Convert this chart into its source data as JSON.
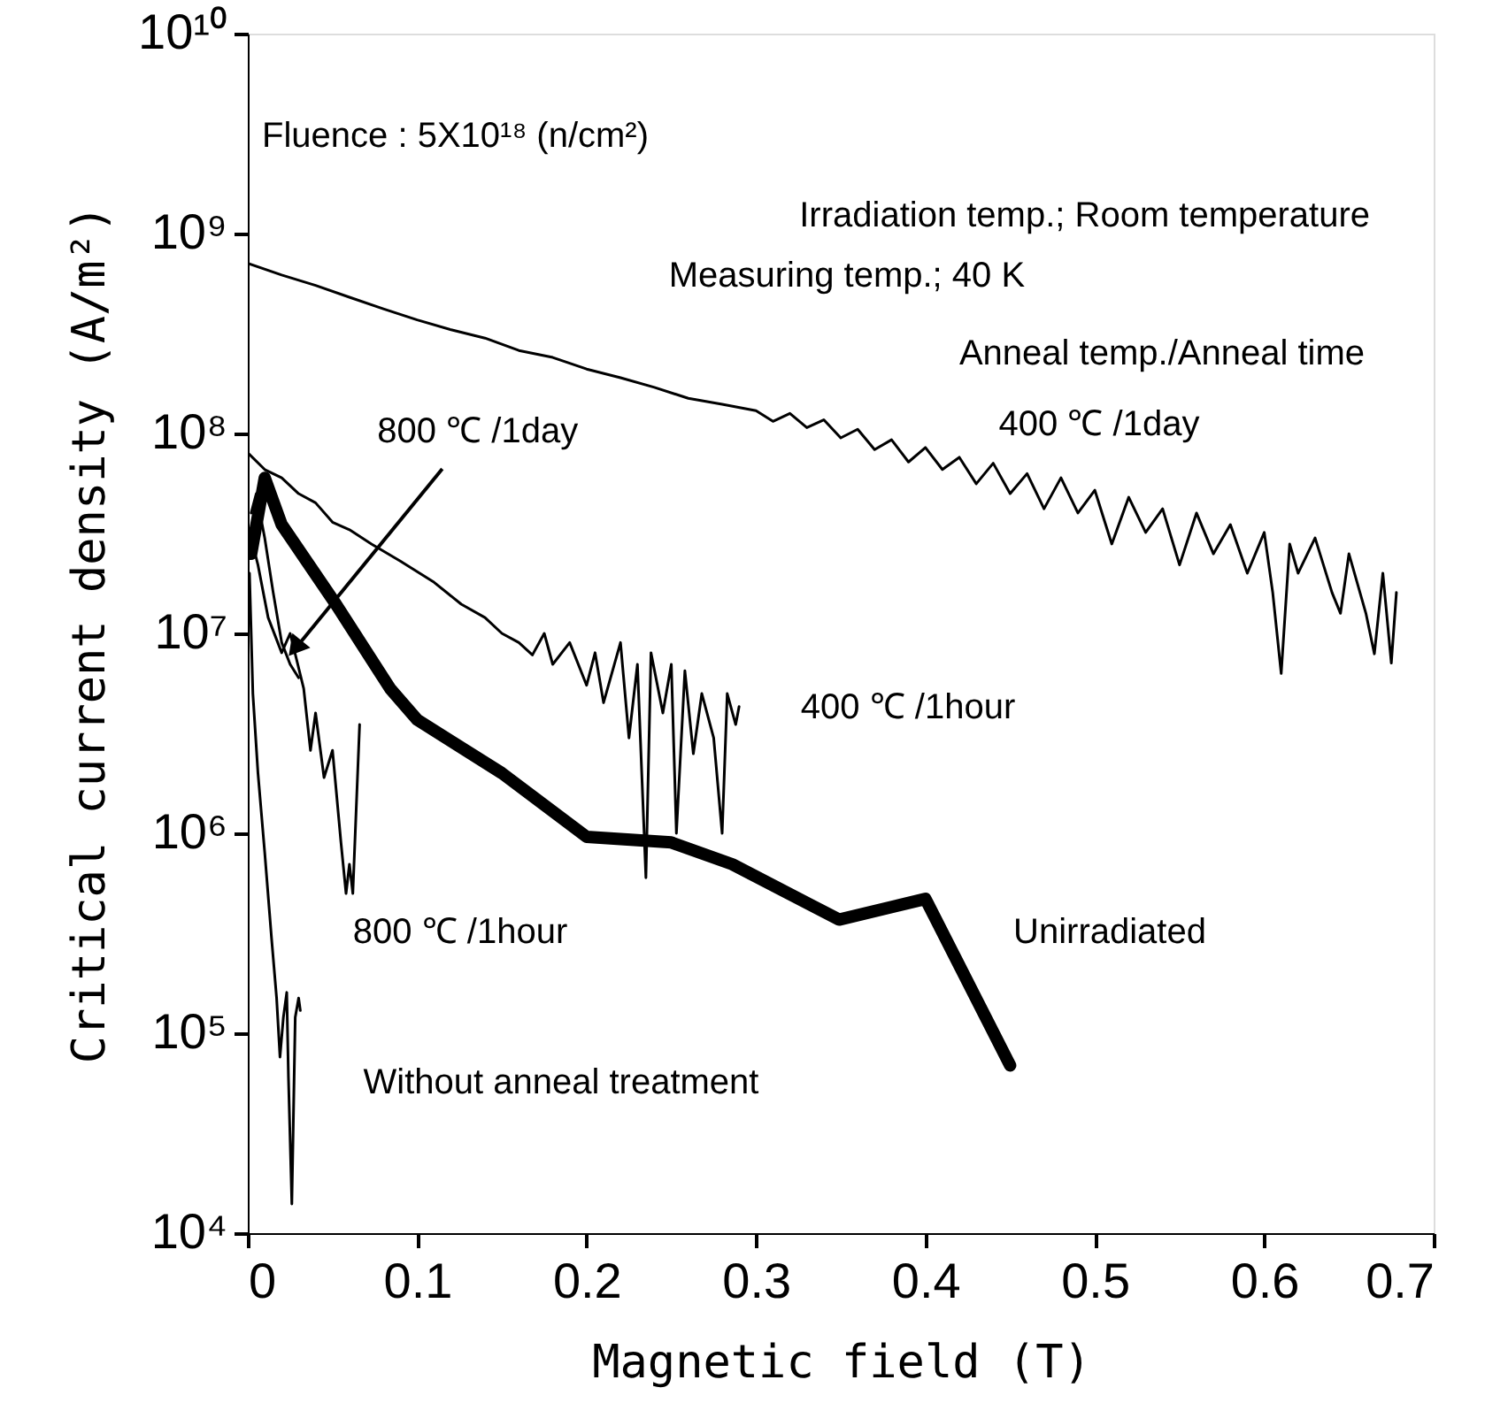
{
  "chart_data": {
    "type": "line",
    "xlabel": "Magnetic field (T)",
    "ylabel": "Critical current density (A/m²)",
    "xlim": [
      0,
      0.7
    ],
    "xticks": [
      0,
      0.1,
      0.2,
      0.3,
      0.4,
      0.5,
      0.6,
      0.7
    ],
    "ylim": [
      10000,
      10000000000
    ],
    "log": "y",
    "yticks": [
      {
        "value": 10000,
        "label": "10⁴"
      },
      {
        "value": 100000,
        "label": "10⁵"
      },
      {
        "value": 1000000,
        "label": "10⁶"
      },
      {
        "value": 10000000,
        "label": "10⁷"
      },
      {
        "value": 100000000,
        "label": "10⁸"
      },
      {
        "value": 1000000000,
        "label": "10⁹"
      },
      {
        "value": 10000000000,
        "label": "10¹⁰"
      }
    ],
    "grid": false,
    "series": [
      {
        "color": "#000000",
        "x": [
          0,
          0.02,
          0.04,
          0.06,
          0.08,
          0.1,
          0.12,
          0.14,
          0.16,
          0.18,
          0.2,
          0.22,
          0.24,
          0.26,
          0.28,
          0.3,
          0.31,
          0.32,
          0.33,
          0.34,
          0.35,
          0.36,
          0.37,
          0.38,
          0.39,
          0.4,
          0.41,
          0.42,
          0.43,
          0.44,
          0.45,
          0.46,
          0.47,
          0.48,
          0.49,
          0.5,
          0.51,
          0.52,
          0.53,
          0.54,
          0.55,
          0.56,
          0.57,
          0.58,
          0.59,
          0.6,
          0.605,
          0.61,
          0.615,
          0.62,
          0.63,
          0.64,
          0.645,
          0.65,
          0.66,
          0.665,
          0.67,
          0.675,
          0.678
        ],
        "values": [
          710000000.0,
          620000000.0,
          550000000.0,
          480000000.0,
          420000000.0,
          370000000.0,
          330000000.0,
          300000000.0,
          260000000.0,
          240000000.0,
          210000000.0,
          190000000.0,
          170000000.0,
          150000000.0,
          140000000.0,
          130000000.0,
          115000000.0,
          126000000.0,
          107000000.0,
          117000000.0,
          95000000.0,
          105000000.0,
          83000000.0,
          93000000.0,
          72000000.0,
          85000000.0,
          66000000.0,
          76000000.0,
          56000000.0,
          71000000.0,
          50000000.0,
          63000000.0,
          42000000.0,
          60000000.0,
          40000000.0,
          52000000.0,
          28000000.0,
          48000000.0,
          32000000.0,
          42000000.0,
          22000000.0,
          40000000.0,
          25000000.0,
          35000000.0,
          20000000.0,
          32000000.0,
          16000000.0,
          6300000.0,
          28000000.0,
          20000000.0,
          30000000.0,
          16000000.0,
          12600000.0,
          25000000.0,
          12600000.0,
          7900000.0,
          20000000.0,
          7100000.0,
          16000000.0
        ]
      },
      {
        "color": "#000000",
        "x": [
          0,
          0.01,
          0.02,
          0.03,
          0.04,
          0.05,
          0.06,
          0.073,
          0.09,
          0.11,
          0.126,
          0.14,
          0.15,
          0.16,
          0.168,
          0.175,
          0.18,
          0.19,
          0.2,
          0.205,
          0.21,
          0.22,
          0.225,
          0.23,
          0.235,
          0.238,
          0.245,
          0.25,
          0.253,
          0.258,
          0.263,
          0.268,
          0.275,
          0.28,
          0.283,
          0.288,
          0.29
        ],
        "values": [
          80000000.0,
          66000000.0,
          60000000.0,
          50000000.0,
          45000000.0,
          36000000.0,
          33000000.0,
          28000000.0,
          23000000.0,
          18000000.0,
          14000000.0,
          12000000.0,
          10000000.0,
          9000000.0,
          7800000.0,
          10000000.0,
          7000000.0,
          9000000.0,
          5500000.0,
          8000000.0,
          4500000.0,
          9000000.0,
          3000000.0,
          7000000.0,
          600000.0,
          8000000.0,
          4000000.0,
          7000000.0,
          1000000.0,
          6500000.0,
          2500000.0,
          5000000.0,
          3000000.0,
          1000000.0,
          5000000.0,
          3500000.0,
          4300000.0
        ]
      },
      {
        "color": "#000000",
        "x": [
          0.002,
          0.005,
          0.01,
          0.015,
          0.02,
          0.025,
          0.03
        ],
        "values": [
          40000000.0,
          50000000.0,
          30000000.0,
          16000000.0,
          9000000.0,
          7000000.0,
          6000000.0
        ]
      },
      {
        "color": "#000000",
        "x": [
          0.002,
          0.006,
          0.012,
          0.02,
          0.025,
          0.033,
          0.037,
          0.04,
          0.045,
          0.05,
          0.055,
          0.058,
          0.06,
          0.062,
          0.066
        ],
        "values": [
          30000000.0,
          22000000.0,
          12000000.0,
          8000000.0,
          10000000.0,
          5300000.0,
          2600000.0,
          4000000.0,
          1900000.0,
          2600000.0,
          900000.0,
          500000.0,
          700000.0,
          500000.0,
          3500000.0
        ]
      },
      {
        "color": "#000000",
        "x": [
          0.001,
          0.003,
          0.006,
          0.01,
          0.014,
          0.017,
          0.019,
          0.021,
          0.023,
          0.024,
          0.026,
          0.028,
          0.03,
          0.031
        ],
        "values": [
          20000000.0,
          5000000.0,
          2000000.0,
          800000.0,
          300000.0,
          150000.0,
          76000.0,
          120000.0,
          160000.0,
          60000.0,
          14000.0,
          120000.0,
          150000.0,
          130000.0
        ]
      },
      {
        "color": "#000000",
        "x": [
          0.002,
          0.01,
          0.02,
          0.052,
          0.084,
          0.1,
          0.15,
          0.2,
          0.25,
          0.286,
          0.349,
          0.4,
          0.45
        ],
        "values": [
          25000000.0,
          60000000.0,
          35000000.0,
          14000000.0,
          5300000.0,
          3700000.0,
          2000000.0,
          960000.0,
          900000.0,
          700000.0,
          370000.0,
          470000.0,
          69000.0
        ]
      }
    ],
    "annotations": [
      "Fluence : 5X10¹⁸ (n/cm²)",
      "Irradiation temp.; Room temperature",
      "Measuring temp.; 40 K",
      "Anneal temp./Anneal time",
      {
        "text": "800 ℃ /1day",
        "x": 0.026,
        "y": 8000000.0
      },
      "400 ℃ /1day",
      "400 ℃ /1hour",
      "800 ℃ /1hour",
      "Without anneal treatment",
      "Unirradiated"
    ]
  }
}
